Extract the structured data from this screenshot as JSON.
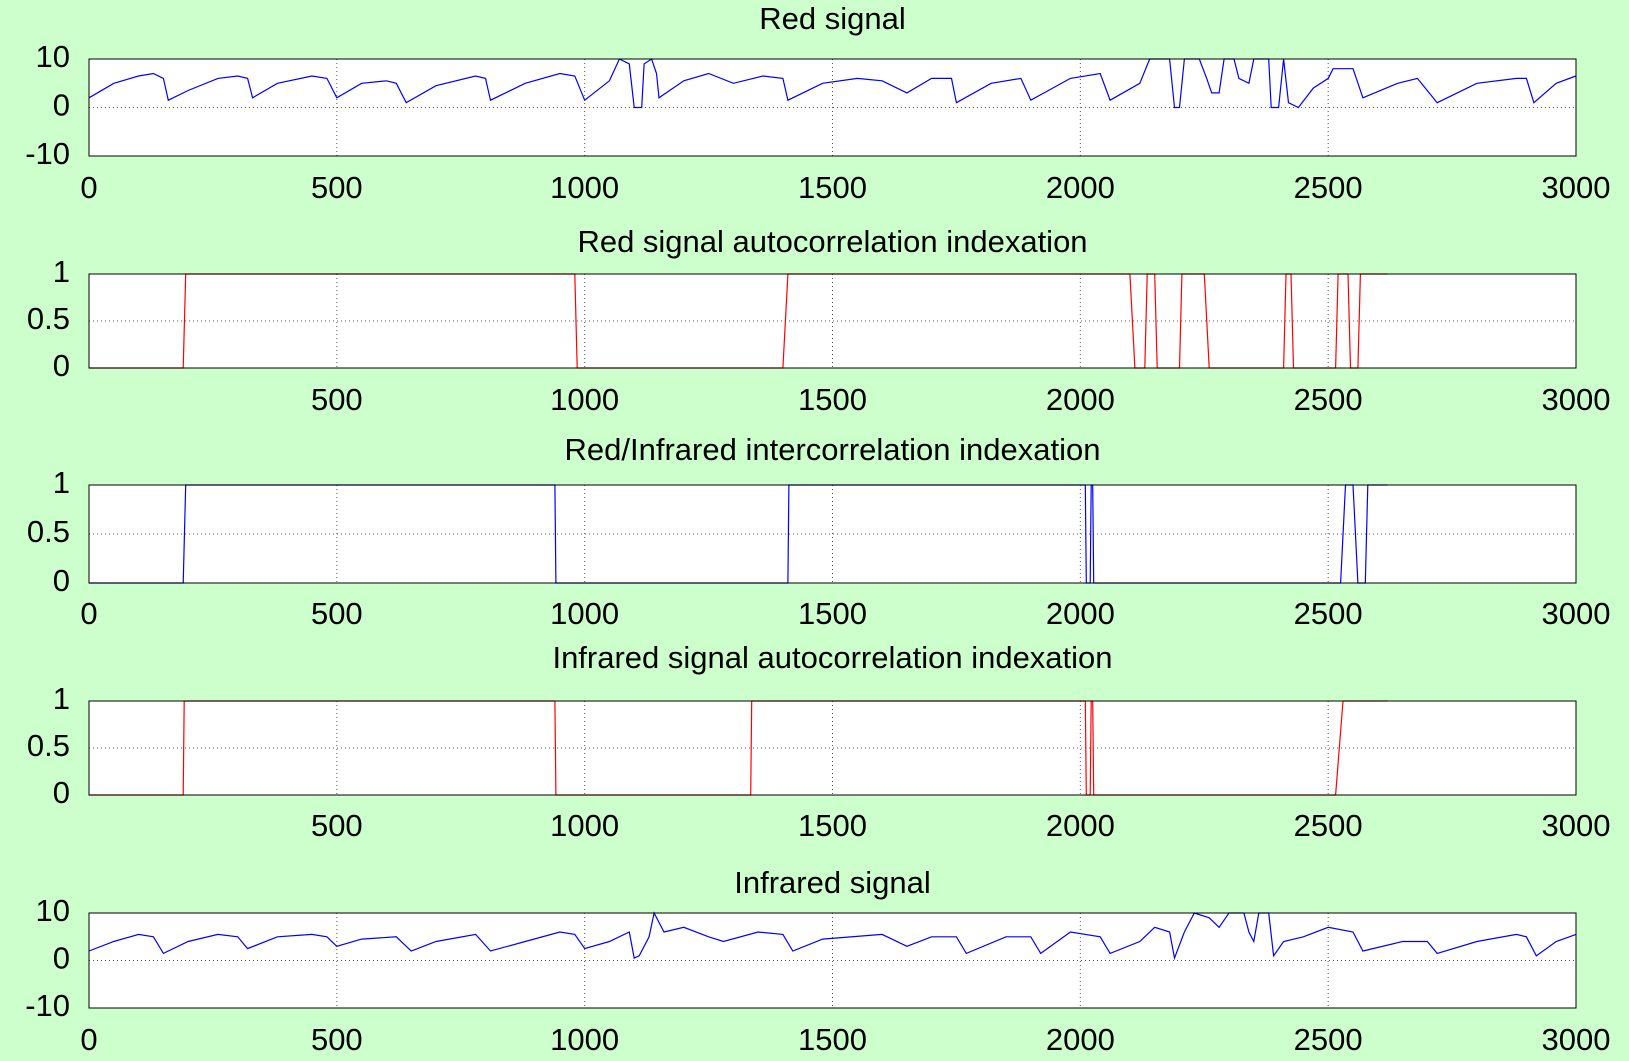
{
  "chart_data": [
    {
      "type": "line",
      "title": "Red signal",
      "color": "#0000ff",
      "grid": true,
      "xlim": [
        0,
        3000
      ],
      "xticks": [
        0,
        500,
        1000,
        1500,
        2000,
        2500,
        3000
      ],
      "ylim": [
        -10,
        10
      ],
      "yticks": [
        -10,
        0,
        10
      ],
      "x": [
        0,
        50,
        100,
        130,
        150,
        160,
        200,
        260,
        300,
        320,
        330,
        380,
        450,
        480,
        500,
        550,
        600,
        620,
        640,
        700,
        780,
        800,
        810,
        880,
        950,
        980,
        1000,
        1050,
        1070,
        1090,
        1100,
        1115,
        1120,
        1135,
        1145,
        1150,
        1200,
        1250,
        1300,
        1360,
        1400,
        1410,
        1480,
        1550,
        1600,
        1650,
        1700,
        1740,
        1750,
        1820,
        1880,
        1900,
        1980,
        2040,
        2060,
        2120,
        2140,
        2180,
        2190,
        2200,
        2210,
        2240,
        2255,
        2265,
        2280,
        2290,
        2310,
        2320,
        2340,
        2350,
        2380,
        2385,
        2400,
        2410,
        2420,
        2440,
        2470,
        2500,
        2510,
        2550,
        2570,
        2640,
        2680,
        2720,
        2800,
        2880,
        2900,
        2915,
        2960,
        3000
      ],
      "values": [
        2,
        5,
        6.5,
        7,
        6,
        1.5,
        3.5,
        6,
        6.5,
        6,
        2,
        5,
        6.5,
        6,
        2,
        5,
        5.5,
        5,
        1,
        4.5,
        6.5,
        6,
        1.5,
        5,
        7,
        6.5,
        1.5,
        5.5,
        10,
        9,
        0,
        0,
        9,
        10,
        7,
        2,
        5.5,
        7,
        5,
        6.5,
        6,
        1.5,
        5,
        6,
        5.5,
        3,
        6,
        6,
        1,
        5,
        6,
        1.5,
        6,
        7,
        1.5,
        5,
        10,
        10,
        0,
        0,
        10,
        10,
        6,
        3,
        3,
        10,
        10,
        6,
        5,
        10,
        10,
        0,
        0,
        10,
        1,
        0,
        4,
        6,
        8,
        8,
        2,
        5,
        6,
        1,
        5,
        6,
        6,
        1,
        5,
        6.5
      ]
    },
    {
      "type": "step",
      "title": "Red signal autocorrelation indexation",
      "color": "#ff0000",
      "grid": true,
      "xlim": [
        0,
        3000
      ],
      "xticks": [
        500,
        1000,
        1500,
        2000,
        2500,
        3000
      ],
      "ylim": [
        0,
        1
      ],
      "yticks": [
        0,
        0.5,
        1
      ],
      "x": [
        0,
        190,
        195,
        980,
        985,
        1400,
        1410,
        2100,
        2110,
        2130,
        2135,
        2150,
        2155,
        2200,
        2205,
        2250,
        2260,
        2410,
        2415,
        2425,
        2430,
        2515,
        2520,
        2540,
        2545,
        2560,
        2565,
        2620
      ],
      "values": [
        0,
        0,
        1,
        1,
        0,
        0,
        1,
        1,
        0,
        0,
        1,
        1,
        0,
        0,
        1,
        1,
        0,
        0,
        1,
        1,
        0,
        0,
        1,
        1,
        0,
        0,
        1,
        1
      ]
    },
    {
      "type": "step",
      "title": "Red/Infrared intercorrelation indexation",
      "color": "#0000ff",
      "grid": true,
      "xlim": [
        0,
        3000
      ],
      "xticks": [
        0,
        500,
        1000,
        1500,
        2000,
        2500,
        3000
      ],
      "ylim": [
        0,
        1
      ],
      "yticks": [
        0,
        0.5,
        1
      ],
      "x": [
        0,
        190,
        195,
        940,
        942,
        1410,
        1412,
        2010,
        2012,
        2020,
        2022,
        2025,
        2027,
        2525,
        2535,
        2550,
        2560,
        2575,
        2580,
        2620
      ],
      "values": [
        0,
        0,
        1,
        1,
        0,
        0,
        1,
        1,
        0,
        0,
        1,
        1,
        0,
        0,
        1,
        1,
        0,
        0,
        1,
        1
      ]
    },
    {
      "type": "step",
      "title": "Infrared signal autocorrelation indexation",
      "color": "#ff0000",
      "grid": true,
      "xlim": [
        0,
        3000
      ],
      "xticks": [
        500,
        1000,
        1500,
        2000,
        2500,
        3000
      ],
      "ylim": [
        0,
        1
      ],
      "yticks": [
        0,
        0.5,
        1
      ],
      "x": [
        0,
        190,
        192,
        940,
        942,
        1335,
        1337,
        2010,
        2012,
        2020,
        2022,
        2025,
        2027,
        2515,
        2530,
        2620
      ],
      "values": [
        0,
        0,
        1,
        1,
        0,
        0,
        1,
        1,
        0,
        0,
        1,
        1,
        0,
        0,
        1,
        1
      ]
    },
    {
      "type": "line",
      "title": "Infrared signal",
      "color": "#0000ff",
      "grid": true,
      "xlim": [
        0,
        3000
      ],
      "xticks": [
        0,
        500,
        1000,
        1500,
        2000,
        2500,
        3000
      ],
      "ylim": [
        -10,
        10
      ],
      "yticks": [
        -10,
        0,
        10
      ],
      "x": [
        0,
        50,
        100,
        130,
        150,
        200,
        260,
        300,
        320,
        380,
        450,
        480,
        500,
        550,
        620,
        650,
        700,
        780,
        810,
        880,
        950,
        980,
        1000,
        1050,
        1090,
        1100,
        1110,
        1130,
        1140,
        1160,
        1200,
        1250,
        1280,
        1350,
        1400,
        1420,
        1480,
        1600,
        1650,
        1700,
        1750,
        1770,
        1850,
        1900,
        1920,
        1980,
        2040,
        2060,
        2120,
        2150,
        2180,
        2190,
        2210,
        2230,
        2260,
        2280,
        2300,
        2330,
        2340,
        2350,
        2360,
        2380,
        2390,
        2410,
        2450,
        2500,
        2550,
        2570,
        2650,
        2700,
        2720,
        2800,
        2880,
        2900,
        2920,
        2960,
        3000
      ],
      "values": [
        2,
        4,
        5.5,
        5,
        1.5,
        4,
        5.5,
        5,
        2.5,
        5,
        5.5,
        5,
        3,
        4.5,
        5,
        2,
        4,
        5.5,
        2,
        4,
        6,
        5.5,
        2.5,
        4,
        6,
        0.5,
        1,
        5,
        10,
        6,
        7,
        5,
        4,
        6,
        5.5,
        2,
        4.5,
        5.5,
        3,
        5,
        5,
        1.5,
        5,
        5,
        1.5,
        6,
        5,
        1.5,
        4,
        7,
        6,
        0.5,
        6,
        10,
        9,
        7,
        10,
        10,
        6,
        4,
        10,
        10,
        1,
        4,
        5,
        7,
        6,
        2,
        4,
        4,
        1.5,
        4,
        5.5,
        5,
        1,
        4,
        5.5
      ]
    }
  ]
}
